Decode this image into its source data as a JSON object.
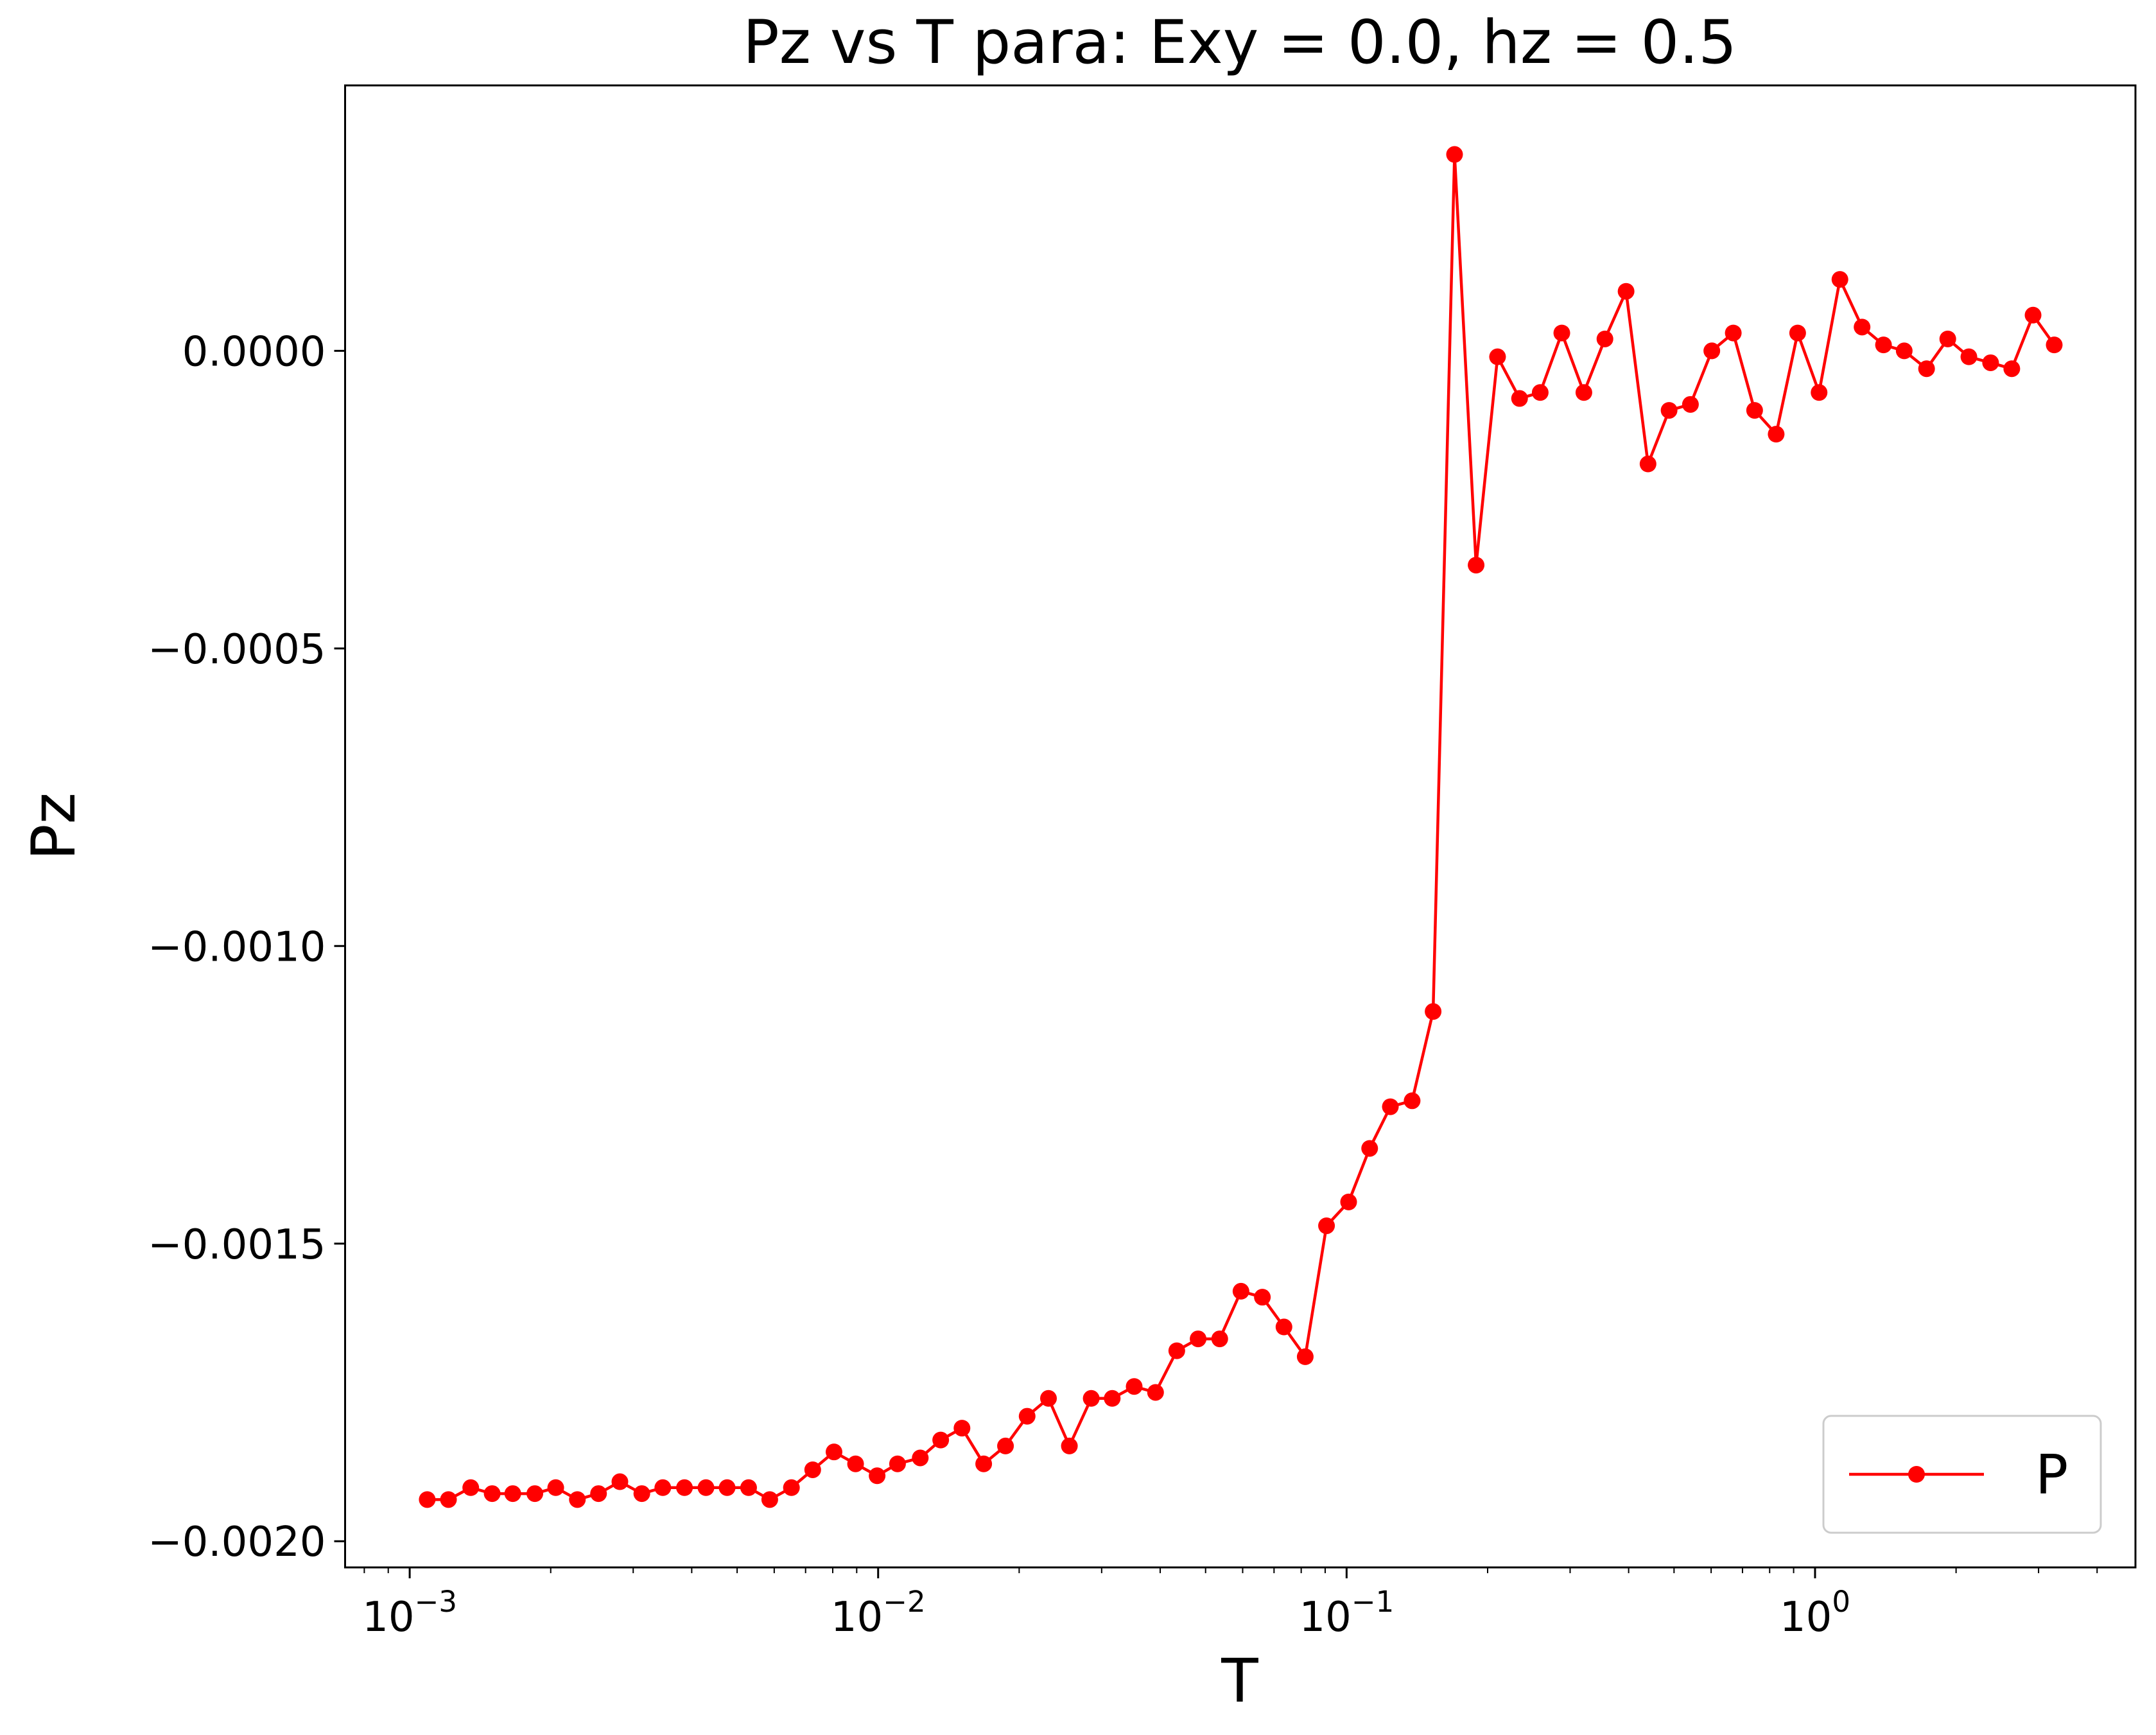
{
  "chart_data": {
    "type": "line",
    "title": "Pz vs T para: Exy = 0.0, hz = 0.5",
    "x_label": "T",
    "y_label": "Pz",
    "x_scale": "log",
    "grid": false,
    "legend_loc": "lower right",
    "x": [
      0.00109,
      0.00121,
      0.00135,
      0.0015,
      0.00166,
      0.00185,
      0.00205,
      0.00228,
      0.00253,
      0.00281,
      0.00313,
      0.00347,
      0.00386,
      0.00429,
      0.00476,
      0.00529,
      0.00587,
      0.00653,
      0.00725,
      0.00805,
      0.00895,
      0.00995,
      0.011,
      0.0123,
      0.0136,
      0.0151,
      0.0168,
      0.0187,
      0.0208,
      0.0231,
      0.0256,
      0.0285,
      0.0316,
      0.0352,
      0.0391,
      0.0434,
      0.0482,
      0.0536,
      0.0595,
      0.0661,
      0.0735,
      0.0816,
      0.0906,
      0.101,
      0.112,
      0.124,
      0.138,
      0.153,
      0.17,
      0.189,
      0.21,
      0.234,
      0.259,
      0.288,
      0.321,
      0.356,
      0.395,
      0.44,
      0.488,
      0.542,
      0.602,
      0.669,
      0.743,
      0.826,
      0.918,
      1.02,
      1.13,
      1.26,
      1.4,
      1.55,
      1.73,
      1.92,
      2.13,
      2.37,
      2.63,
      2.92,
      3.24
    ],
    "series": [
      {
        "name": "P",
        "color": "#ff0000",
        "values": [
          -0.00193,
          -0.00193,
          -0.00191,
          -0.00192,
          -0.00192,
          -0.00192,
          -0.00191,
          -0.00193,
          -0.00192,
          -0.0019,
          -0.00192,
          -0.00191,
          -0.00191,
          -0.00191,
          -0.00191,
          -0.00191,
          -0.00193,
          -0.00191,
          -0.00188,
          -0.00185,
          -0.00187,
          -0.00189,
          -0.00187,
          -0.00186,
          -0.00183,
          -0.00181,
          -0.00187,
          -0.00184,
          -0.00179,
          -0.00176,
          -0.00184,
          -0.00176,
          -0.00176,
          -0.00174,
          -0.00175,
          -0.00168,
          -0.00166,
          -0.00166,
          -0.00158,
          -0.00159,
          -0.00164,
          -0.00169,
          -0.00147,
          -0.00143,
          -0.00134,
          -0.00127,
          -0.00126,
          -0.00111,
          0.00033,
          -0.00036,
          -1e-05,
          -8e-05,
          -7e-05,
          3e-05,
          -7e-05,
          2e-05,
          0.0001,
          -0.00019,
          -0.0001,
          -9e-05,
          0.0,
          3e-05,
          -0.0001,
          -0.00014,
          3e-05,
          -7e-05,
          0.00012,
          4e-05,
          1e-05,
          0.0,
          -3e-05,
          2e-05,
          -1e-05,
          -2e-05,
          -3e-05,
          6e-05,
          1e-05
        ]
      }
    ],
    "xlim": [
      0.000728,
      4.83
    ],
    "ylim": [
      -0.002044,
      0.000446
    ],
    "xticks": [
      {
        "value": 0.001,
        "label": "10",
        "exponent": "−3"
      },
      {
        "value": 0.01,
        "label": "10",
        "exponent": "−2"
      },
      {
        "value": 0.1,
        "label": "10",
        "exponent": "−1"
      },
      {
        "value": 1,
        "label": "10",
        "exponent": "0"
      }
    ],
    "xminorticks": [
      0.0008,
      0.0009,
      0.002,
      0.003,
      0.004,
      0.005,
      0.006,
      0.007,
      0.008,
      0.009,
      0.02,
      0.03,
      0.04,
      0.05,
      0.06,
      0.07,
      0.08,
      0.09,
      0.2,
      0.3,
      0.4,
      0.5,
      0.6,
      0.7,
      0.8,
      0.9,
      2,
      3,
      4
    ],
    "yticks": [
      {
        "value": 0,
        "label": "0.0000"
      },
      {
        "value": -0.0005,
        "label": "−0.0005"
      },
      {
        "value": -0.001,
        "label": "−0.0010"
      },
      {
        "value": -0.0015,
        "label": "−0.0015"
      },
      {
        "value": -0.002,
        "label": "−0.0020"
      }
    ]
  }
}
